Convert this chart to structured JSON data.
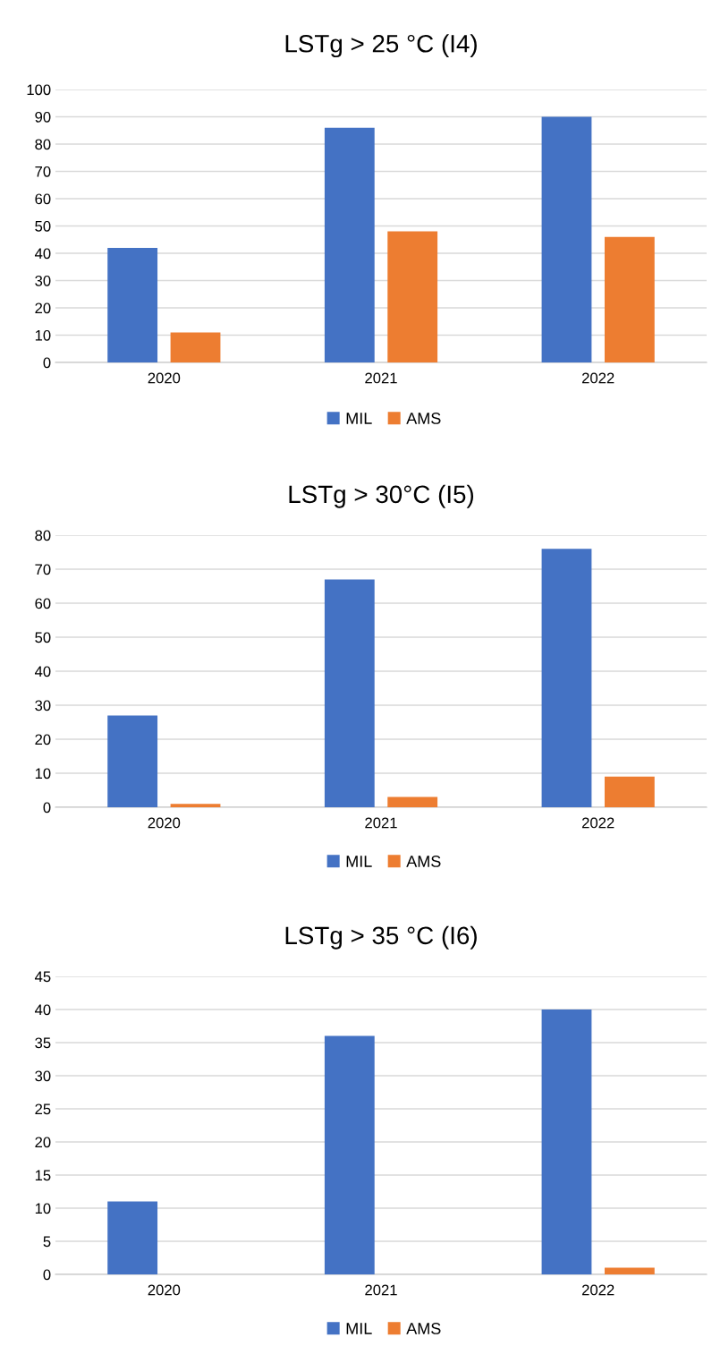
{
  "chart_data": [
    {
      "type": "bar",
      "title": "LSTg > 25 °C (I4)",
      "categories": [
        "2020",
        "2021",
        "2022"
      ],
      "series": [
        {
          "name": "MIL",
          "color": "#4472c4",
          "values": [
            42,
            86,
            90
          ]
        },
        {
          "name": "AMS",
          "color": "#ed7d31",
          "values": [
            11,
            48,
            46
          ]
        }
      ],
      "ylim": [
        0,
        100
      ],
      "yticks": [
        0,
        10,
        20,
        30,
        40,
        50,
        60,
        70,
        80,
        90,
        100
      ],
      "grid": "y",
      "legend": "bottom"
    },
    {
      "type": "bar",
      "title": "LSTg > 30°C (I5)",
      "categories": [
        "2020",
        "2021",
        "2022"
      ],
      "series": [
        {
          "name": "MIL",
          "color": "#4472c4",
          "values": [
            27,
            67,
            76
          ]
        },
        {
          "name": "AMS",
          "color": "#ed7d31",
          "values": [
            1,
            3,
            9
          ]
        }
      ],
      "ylim": [
        0,
        80
      ],
      "yticks": [
        0,
        10,
        20,
        30,
        40,
        50,
        60,
        70,
        80
      ],
      "grid": "y",
      "legend": "bottom"
    },
    {
      "type": "bar",
      "title": "LSTg > 35 °C (I6)",
      "categories": [
        "2020",
        "2021",
        "2022"
      ],
      "series": [
        {
          "name": "MIL",
          "color": "#4472c4",
          "values": [
            11,
            36,
            40
          ]
        },
        {
          "name": "AMS",
          "color": "#ed7d31",
          "values": [
            0,
            0,
            1
          ]
        }
      ],
      "ylim": [
        0,
        45
      ],
      "yticks": [
        0,
        5,
        10,
        15,
        20,
        25,
        30,
        35,
        40,
        45
      ],
      "grid": "y",
      "legend": "bottom"
    }
  ]
}
